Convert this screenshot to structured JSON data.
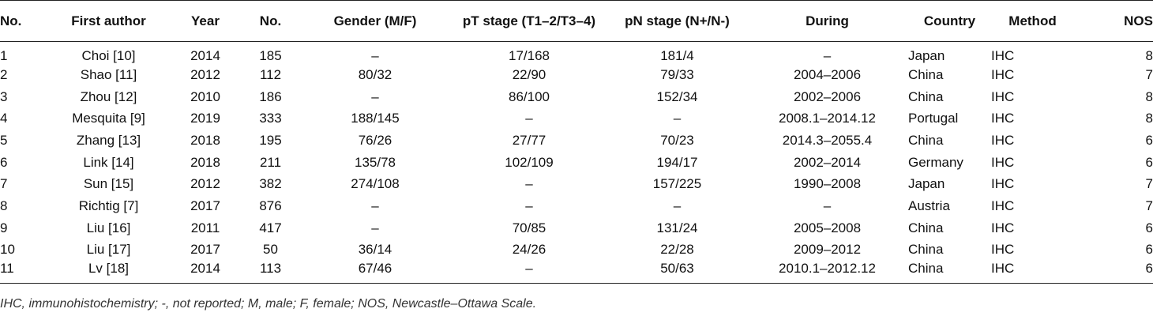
{
  "table": {
    "headers": [
      "No.",
      "First author",
      "Year",
      "No.",
      "Gender (M/F)",
      "pT stage (T1–2/T3–4)",
      "pN stage (N+/N-)",
      "During",
      "Country",
      "Method",
      "NOS"
    ],
    "rows": [
      [
        "1",
        "Choi [10]",
        "2014",
        "185",
        "–",
        "17/168",
        "181/4",
        "–",
        "Japan",
        "IHC",
        "8"
      ],
      [
        "2",
        "Shao [11]",
        "2012",
        "112",
        "80/32",
        "22/90",
        "79/33",
        "2004–2006",
        "China",
        "IHC",
        "7"
      ],
      [
        "3",
        "Zhou [12]",
        "2010",
        "186",
        "–",
        "86/100",
        "152/34",
        "2002–2006",
        "China",
        "IHC",
        "8"
      ],
      [
        "4",
        "Mesquita [9]",
        "2019",
        "333",
        "188/145",
        "–",
        "–",
        "2008.1–2014.12",
        "Portugal",
        "IHC",
        "8"
      ],
      [
        "5",
        "Zhang [13]",
        "2018",
        "195",
        "76/26",
        "27/77",
        "70/23",
        "2014.3–2055.4",
        "China",
        "IHC",
        "6"
      ],
      [
        "6",
        "Link [14]",
        "2018",
        "211",
        "135/78",
        "102/109",
        "194/17",
        "2002–2014",
        "Germany",
        "IHC",
        "6"
      ],
      [
        "7",
        "Sun [15]",
        "2012",
        "382",
        "274/108",
        "–",
        "157/225",
        "1990–2008",
        "Japan",
        "IHC",
        "7"
      ],
      [
        "8",
        "Richtig [7]",
        "2017",
        "876",
        "–",
        "–",
        "–",
        "–",
        "Austria",
        "IHC",
        "7"
      ],
      [
        "9",
        "Liu [16]",
        "2011",
        "417",
        "–",
        "70/85",
        "131/24",
        "2005–2008",
        "China",
        "IHC",
        "6"
      ],
      [
        "10",
        "Liu [17]",
        "2017",
        "50",
        "36/14",
        "24/26",
        "22/28",
        "2009–2012",
        "China",
        "IHC",
        "6"
      ],
      [
        "11",
        "Lv [18]",
        "2014",
        "113",
        "67/46",
        "–",
        "50/63",
        "2010.1–2012.12",
        "China",
        "IHC",
        "6"
      ]
    ]
  },
  "footnote": "IHC, immunohistochemistry; -, not reported; M, male; F, female; NOS, Newcastle–Ottawa Scale."
}
